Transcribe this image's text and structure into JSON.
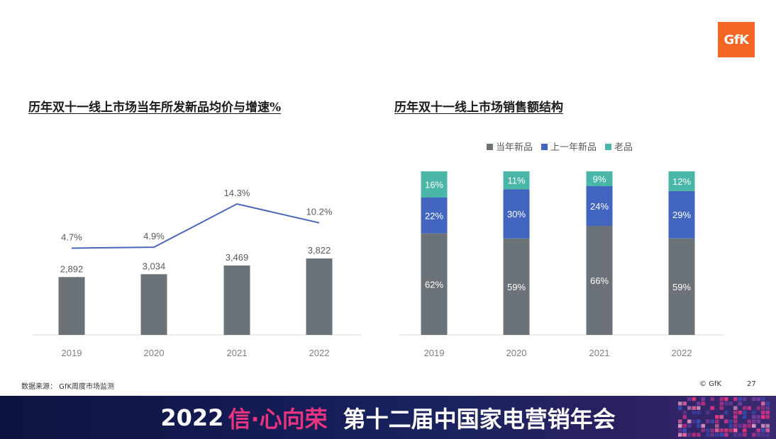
{
  "logo": {
    "text": "GfK",
    "color": "#f26522"
  },
  "left_chart": {
    "title": "历年双十一线上市场当年所发新品均价与增速%"
  },
  "right_chart": {
    "title": "历年双十一线上市场销售额结构"
  },
  "chart_data": [
    {
      "type": "bar",
      "title": "历年双十一线上市场当年所发新品均价与增速%",
      "categories": [
        "2019",
        "2020",
        "2021",
        "2022"
      ],
      "series": [
        {
          "kind": "bar",
          "values": [
            2892,
            3034,
            3469,
            3822
          ],
          "labels": [
            "2,892",
            "3,034",
            "3,469",
            "3,822"
          ],
          "color": "#6b7378"
        },
        {
          "kind": "line",
          "values": [
            4.7,
            4.9,
            14.3,
            10.2
          ],
          "labels": [
            "4.7%",
            "4.9%",
            "14.3%",
            "10.2%"
          ],
          "color": "#4a66b8"
        }
      ],
      "grid": false
    },
    {
      "type": "bar",
      "stacked": true,
      "title": "历年双十一线上市场销售额结构",
      "categories": [
        "2019",
        "2020",
        "2021",
        "2022"
      ],
      "legend_position": "top",
      "series": [
        {
          "name": "当年新品",
          "values": [
            62,
            59,
            66,
            59
          ],
          "labels": [
            "62%",
            "59%",
            "66%",
            "59%"
          ],
          "color": "#6b7378"
        },
        {
          "name": "上一年新品",
          "values": [
            22,
            30,
            24,
            29
          ],
          "labels": [
            "22%",
            "30%",
            "24%",
            "29%"
          ],
          "color": "#4266c0"
        },
        {
          "name": "老品",
          "values": [
            16,
            11,
            9,
            12
          ],
          "labels": [
            "16%",
            "11%",
            "9%",
            "12%"
          ],
          "color": "#4ab6a8"
        }
      ],
      "ylim": [
        0,
        100
      ]
    }
  ],
  "footer": {
    "source": "数据来源： GfK周度市场监测",
    "copyright": "© GfK",
    "page": "27"
  },
  "banner": {
    "year": "2022",
    "slogan": "信·心向荣",
    "event": "第十二届中国家电营销年会",
    "slogan_color": "#e8337e"
  }
}
